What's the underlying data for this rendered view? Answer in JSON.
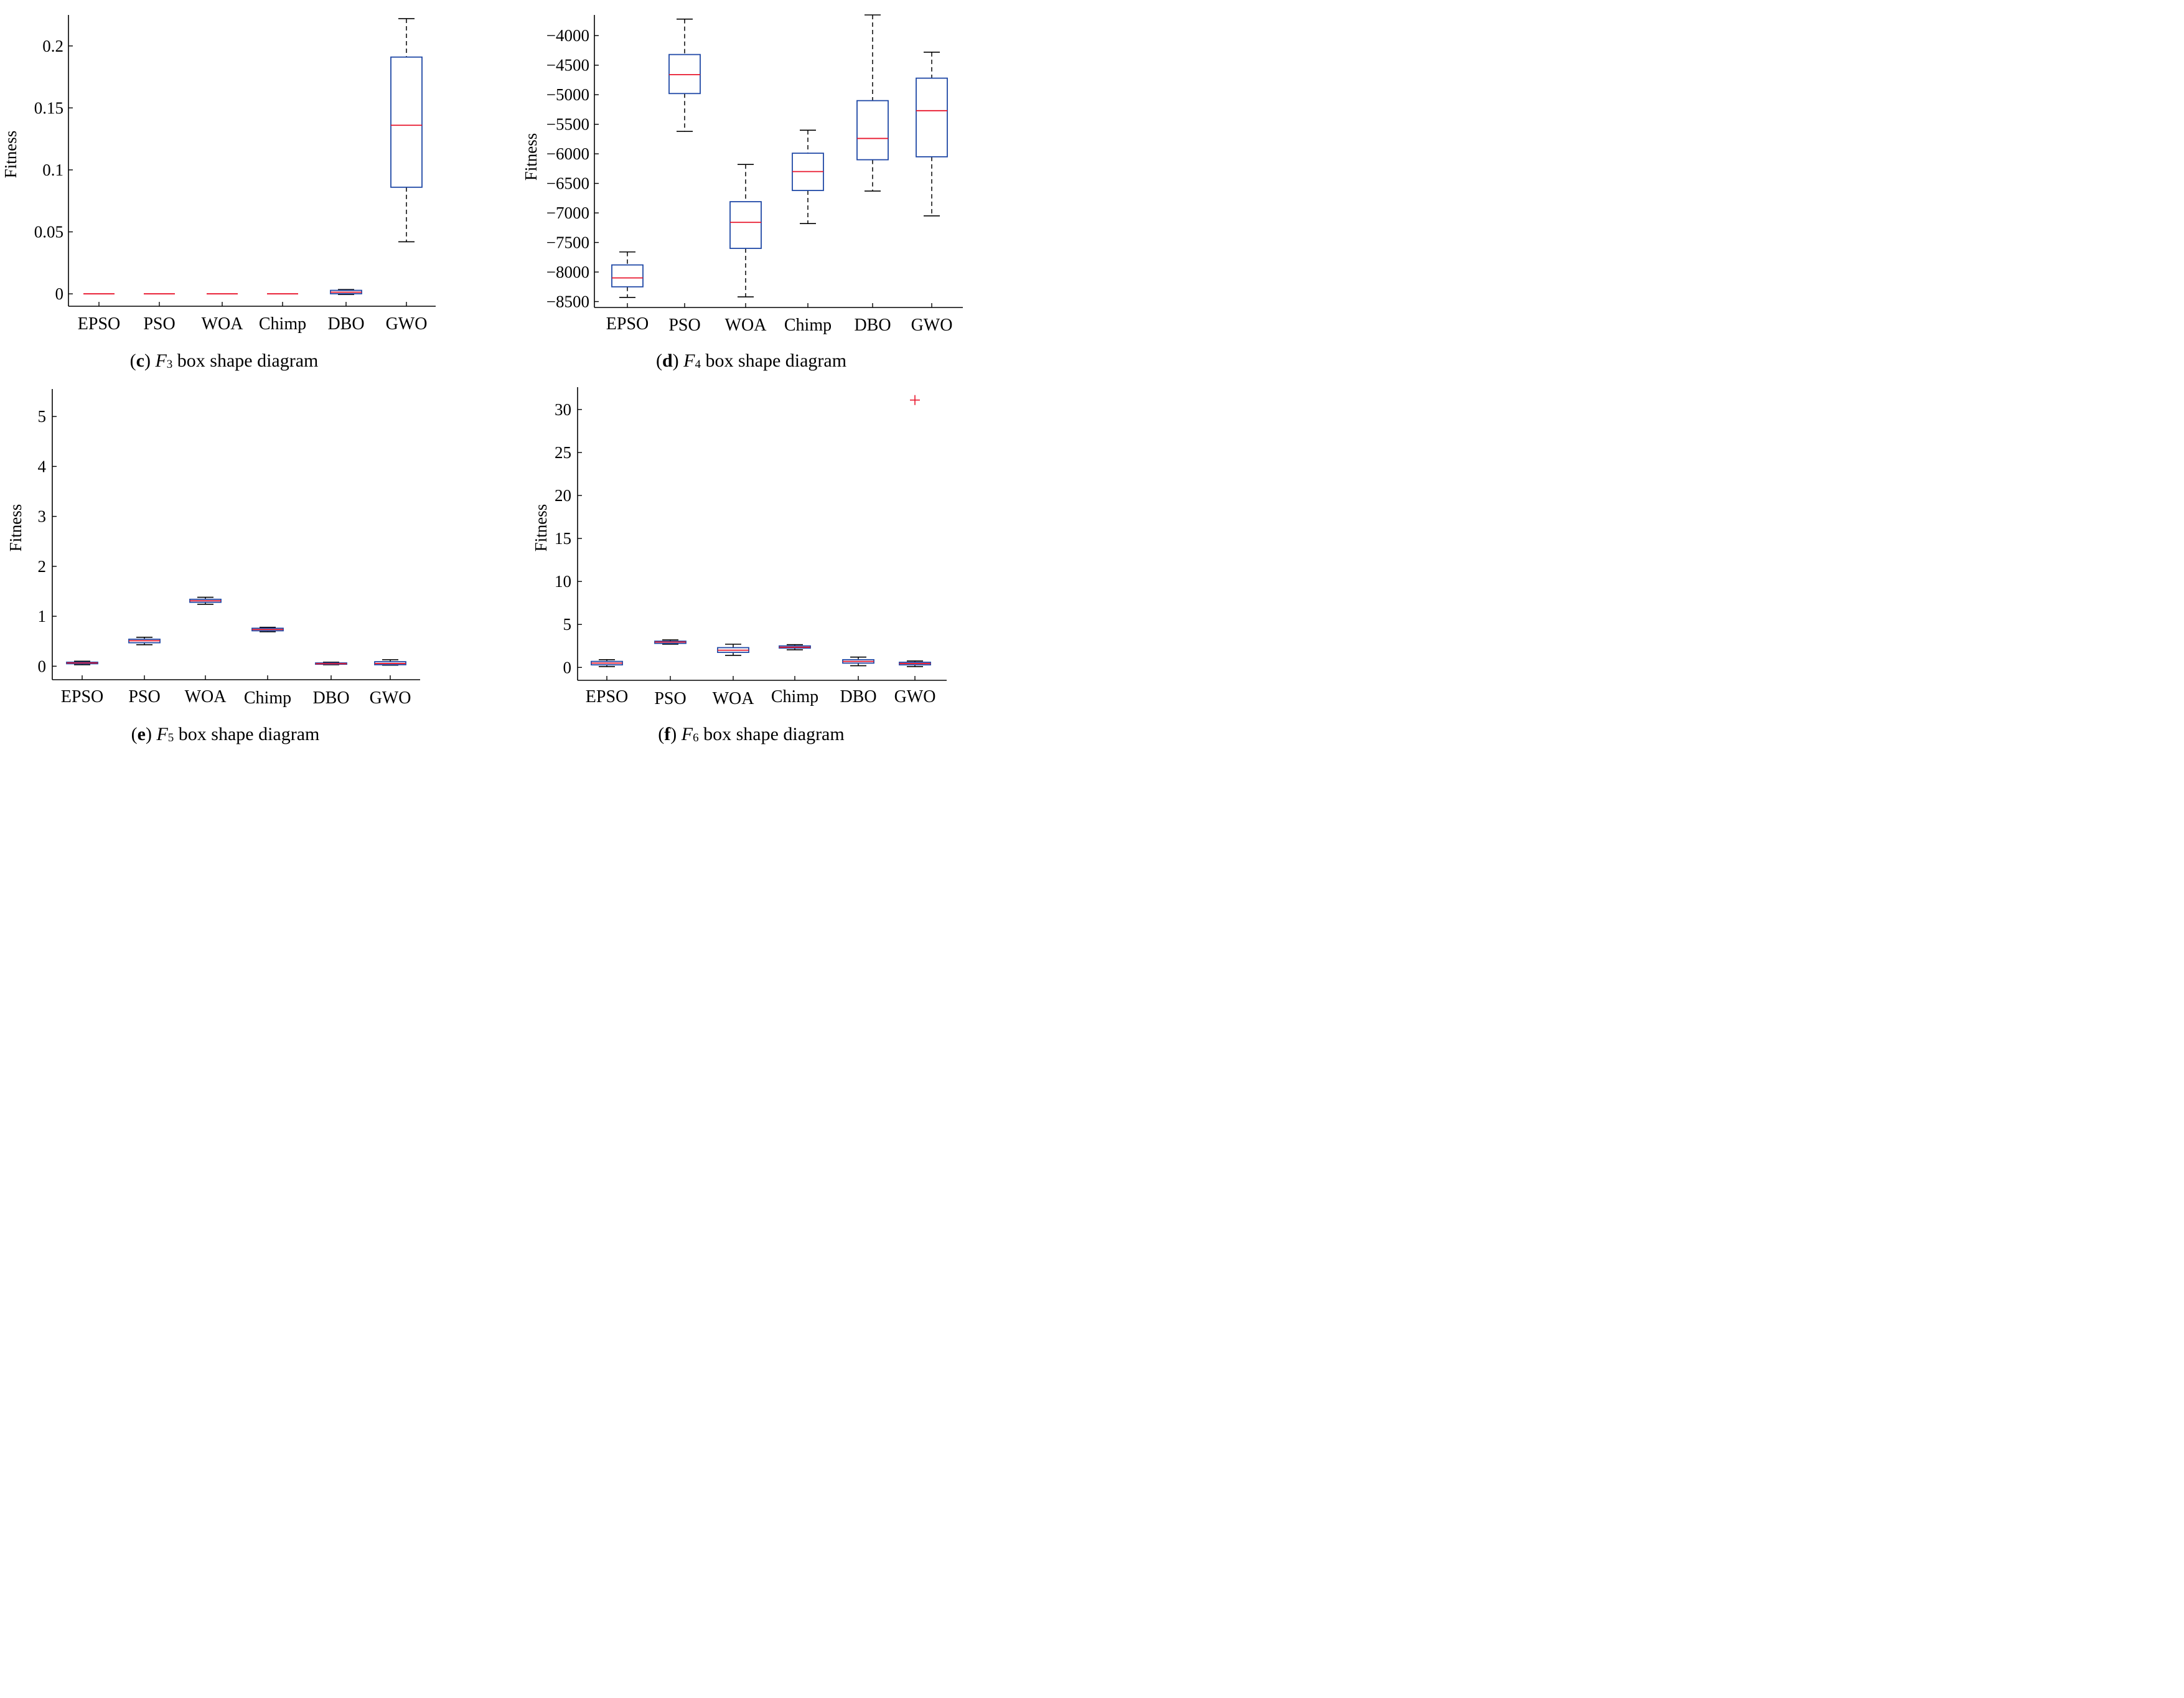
{
  "chart_data": [
    {
      "type": "box",
      "panel": "c",
      "caption": {
        "letter": "c",
        "func": "F",
        "sub": "3",
        "text": "box shape diagram"
      },
      "ylabel": "Fitness",
      "ylim": [
        -0.01,
        0.225
      ],
      "yticks": [
        0,
        0.05,
        0.1,
        0.15,
        0.2
      ],
      "ytick_labels": [
        "0",
        "0.05",
        "0.1",
        "0.15",
        "0.2"
      ],
      "categories": [
        "EPSO",
        "PSO",
        "WOA",
        "Chimp",
        "DBO",
        "GWO"
      ],
      "boxes": [
        {
          "min": 0,
          "q1": 0,
          "median": 0,
          "q3": 0,
          "max": 0,
          "outliers": []
        },
        {
          "min": 0,
          "q1": 0,
          "median": 0,
          "q3": 0,
          "max": 0,
          "outliers": []
        },
        {
          "min": 0,
          "q1": 0,
          "median": 0,
          "q3": 0,
          "max": 0,
          "outliers": []
        },
        {
          "min": 0,
          "q1": 0,
          "median": 0,
          "q3": 0,
          "max": 0,
          "outliers": []
        },
        {
          "min": -0.0005,
          "q1": 0.0001,
          "median": 0.0013,
          "q3": 0.0028,
          "max": 0.0035,
          "outliers": []
        },
        {
          "min": 0.042,
          "q1": 0.086,
          "median": 0.136,
          "q3": 0.191,
          "max": 0.222,
          "outliers": []
        }
      ]
    },
    {
      "type": "box",
      "panel": "d",
      "caption": {
        "letter": "d",
        "func": "F",
        "sub": "4",
        "text": "box shape diagram"
      },
      "ylabel": "Fitness",
      "ylim": [
        -8600,
        -3650
      ],
      "yticks": [
        -8500,
        -8000,
        -7500,
        -7000,
        -6500,
        -6000,
        -5500,
        -5000,
        -4500,
        -4000
      ],
      "ytick_labels": [
        "−8500",
        "−8000",
        "−7500",
        "−7000",
        "−6500",
        "−6000",
        "−5500",
        "−5000",
        "−4500",
        "−4000"
      ],
      "categories": [
        "EPSO",
        "PSO",
        "WOA",
        "Chimp",
        "DBO",
        "GWO"
      ],
      "boxes": [
        {
          "min": -8430,
          "q1": -8250,
          "median": -8100,
          "q3": -7880,
          "max": -7660,
          "outliers": []
        },
        {
          "min": -5620,
          "q1": -4980,
          "median": -4660,
          "q3": -4320,
          "max": -3720,
          "outliers": []
        },
        {
          "min": -8420,
          "q1": -7600,
          "median": -7160,
          "q3": -6810,
          "max": -6180,
          "outliers": []
        },
        {
          "min": -7180,
          "q1": -6620,
          "median": -6300,
          "q3": -5990,
          "max": -5600,
          "outliers": []
        },
        {
          "min": -6630,
          "q1": -6100,
          "median": -5740,
          "q3": -5100,
          "max": -3650,
          "outliers": []
        },
        {
          "min": -7050,
          "q1": -6050,
          "median": -5270,
          "q3": -4720,
          "max": -4280,
          "outliers": []
        }
      ]
    },
    {
      "type": "box",
      "panel": "e",
      "caption": {
        "letter": "e",
        "func": "F",
        "sub": "5",
        "text": "box shape diagram"
      },
      "ylabel": "Fitness",
      "ylim": [
        -0.27,
        5.55
      ],
      "yticks": [
        0,
        1,
        2,
        3,
        4,
        5
      ],
      "ytick_labels": [
        "0",
        "1",
        "2",
        "3",
        "4",
        "5"
      ],
      "categories": [
        "EPSO",
        "PSO",
        "WOA",
        "Chimp",
        "DBO",
        "GWO"
      ],
      "boxes": [
        {
          "min": 0.03,
          "q1": 0.05,
          "median": 0.065,
          "q3": 0.08,
          "max": 0.1,
          "outliers": []
        },
        {
          "min": 0.43,
          "q1": 0.47,
          "median": 0.51,
          "q3": 0.54,
          "max": 0.58,
          "outliers": []
        },
        {
          "min": 1.24,
          "q1": 1.28,
          "median": 1.31,
          "q3": 1.34,
          "max": 1.38,
          "outliers": []
        },
        {
          "min": 0.69,
          "q1": 0.71,
          "median": 0.735,
          "q3": 0.76,
          "max": 0.78,
          "outliers": []
        },
        {
          "min": 0.03,
          "q1": 0.04,
          "median": 0.05,
          "q3": 0.065,
          "max": 0.08,
          "outliers": []
        },
        {
          "min": 0.02,
          "q1": 0.03,
          "median": 0.055,
          "q3": 0.09,
          "max": 0.13,
          "outliers": []
        }
      ]
    },
    {
      "type": "box",
      "panel": "f",
      "caption": {
        "letter": "f",
        "func": "F",
        "sub": "6",
        "text": "box shape diagram"
      },
      "ylabel": "Fitness",
      "ylim": [
        -1.5,
        32.6
      ],
      "yticks": [
        0,
        5,
        10,
        15,
        20,
        25,
        30
      ],
      "ytick_labels": [
        "0",
        "5",
        "10",
        "15",
        "20",
        "25",
        "30"
      ],
      "categories": [
        "EPSO",
        "PSO",
        "WOA",
        "Chimp",
        "DBO",
        "GWO"
      ],
      "boxes": [
        {
          "min": 0.1,
          "q1": 0.3,
          "median": 0.5,
          "q3": 0.7,
          "max": 0.9,
          "outliers": []
        },
        {
          "min": 2.7,
          "q1": 2.8,
          "median": 2.95,
          "q3": 3.05,
          "max": 3.2,
          "outliers": []
        },
        {
          "min": 1.4,
          "q1": 1.75,
          "median": 2.0,
          "q3": 2.3,
          "max": 2.7,
          "outliers": []
        },
        {
          "min": 2.05,
          "q1": 2.25,
          "median": 2.35,
          "q3": 2.5,
          "max": 2.65,
          "outliers": []
        },
        {
          "min": 0.2,
          "q1": 0.5,
          "median": 0.7,
          "q3": 0.9,
          "max": 1.2,
          "outliers": []
        },
        {
          "min": 0.1,
          "q1": 0.3,
          "median": 0.45,
          "q3": 0.6,
          "max": 0.75,
          "outliers": [
            31.1
          ]
        }
      ]
    }
  ],
  "colors": {
    "box": "#1f48a6",
    "median": "#e8152b",
    "whisker": "#000000",
    "outlier": "#e8152b"
  }
}
